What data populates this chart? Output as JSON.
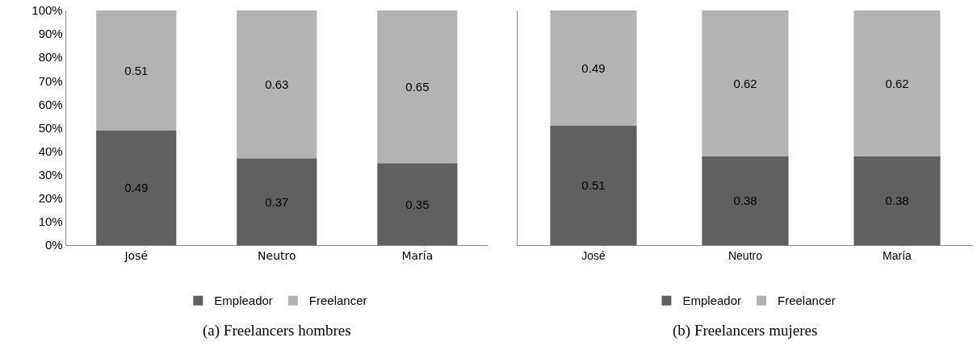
{
  "chart_data": [
    {
      "type": "bar",
      "stacked": true,
      "title": "(a) Freelancers hombres",
      "categories": [
        "José",
        "Neutro",
        "María"
      ],
      "series": [
        {
          "name": "Empleador",
          "color": "#606060",
          "values": [
            0.49,
            0.37,
            0.35
          ]
        },
        {
          "name": "Freelancer",
          "color": "#b3b3b3",
          "values": [
            0.51,
            0.63,
            0.65
          ]
        }
      ],
      "ylim": [
        0,
        1
      ],
      "yticks": [
        {
          "value": 0,
          "label": "0%"
        },
        {
          "value": 0.1,
          "label": "10%"
        },
        {
          "value": 0.2,
          "label": "20%"
        },
        {
          "value": 0.3,
          "label": "30%"
        },
        {
          "value": 0.4,
          "label": "40%"
        },
        {
          "value": 0.5,
          "label": "50%"
        },
        {
          "value": 0.6,
          "label": "60%"
        },
        {
          "value": 0.7,
          "label": "70%"
        },
        {
          "value": 0.8,
          "label": "80%"
        },
        {
          "value": 0.9,
          "label": "90%"
        },
        {
          "value": 1,
          "label": "100%"
        }
      ],
      "data_labels": true,
      "legend": "bottom"
    },
    {
      "type": "bar",
      "stacked": true,
      "title": "(b) Freelancers mujeres",
      "categories": [
        "José",
        "Neutro",
        "María"
      ],
      "series": [
        {
          "name": "Empleador",
          "color": "#606060",
          "values": [
            0.51,
            0.38,
            0.38
          ]
        },
        {
          "name": "Freelancer",
          "color": "#b3b3b3",
          "values": [
            0.49,
            0.62,
            0.62
          ]
        }
      ],
      "ylim": [
        0,
        1
      ],
      "tick_labels": "x",
      "data_labels": true,
      "legend": "bottom"
    }
  ]
}
